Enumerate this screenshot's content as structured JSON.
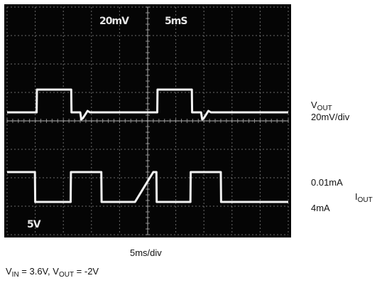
{
  "chart_data": {
    "type": "line",
    "title": "",
    "screen_labels": {
      "volts_div": "20mV",
      "time_div": "5mS",
      "ch_scale": "5V"
    },
    "xlabel": "5ms/div",
    "divisions": {
      "x": 10,
      "y": 8
    },
    "series": [
      {
        "name": "V_OUT",
        "scale_text": "20mV/div",
        "units": "div",
        "points": [
          [
            0,
            4.3
          ],
          [
            1.05,
            4.3
          ],
          [
            1.06,
            5.1
          ],
          [
            2.28,
            5.1
          ],
          [
            2.29,
            4.3
          ],
          [
            2.6,
            4.3
          ],
          [
            2.64,
            4.05
          ],
          [
            2.7,
            4.1
          ],
          [
            2.86,
            4.35
          ],
          [
            2.95,
            4.3
          ],
          [
            3.7,
            4.3
          ],
          [
            3.71,
            4.3
          ],
          [
            3.72,
            4.3
          ],
          [
            3.73,
            4.3
          ],
          [
            3.74,
            4.3
          ],
          [
            4.4,
            4.3
          ],
          [
            4.41,
            4.3
          ],
          [
            4.42,
            4.3
          ],
          [
            4.43,
            4.3
          ],
          [
            4.44,
            4.3
          ],
          [
            4.5,
            4.3
          ],
          [
            4.55,
            4.3
          ],
          [
            4.9,
            4.3
          ],
          [
            5.05,
            4.3
          ],
          [
            5.2,
            4.3
          ],
          [
            5.34,
            4.3
          ],
          [
            5.35,
            5.1
          ],
          [
            6.57,
            5.1
          ],
          [
            6.58,
            4.3
          ],
          [
            6.9,
            4.3
          ],
          [
            6.94,
            4.05
          ],
          [
            7.0,
            4.1
          ],
          [
            7.16,
            4.35
          ],
          [
            7.25,
            4.3
          ],
          [
            10,
            4.3
          ]
        ]
      },
      {
        "name": "I_OUT",
        "units": "div",
        "levels": [
          {
            "label": "0.01mA",
            "div": 2.2
          },
          {
            "label": "4mA",
            "div": 1.15
          }
        ],
        "points": [
          [
            0,
            2.2
          ],
          [
            0.99,
            2.2
          ],
          [
            1.0,
            1.15
          ],
          [
            2.26,
            1.15
          ],
          [
            2.27,
            2.2
          ],
          [
            3.35,
            2.2
          ],
          [
            3.36,
            1.15
          ],
          [
            4.55,
            1.15
          ],
          [
            5.2,
            2.2
          ],
          [
            5.2,
            2.2
          ],
          [
            5.31,
            2.2
          ],
          [
            5.32,
            1.15
          ],
          [
            6.52,
            1.15
          ],
          [
            6.53,
            2.2
          ],
          [
            7.6,
            2.2
          ],
          [
            7.61,
            1.15
          ],
          [
            10,
            1.15
          ]
        ]
      }
    ],
    "ylim": [
      0,
      8
    ],
    "xlim": [
      0,
      10
    ],
    "grid": true,
    "legend": "right"
  },
  "labels": {
    "vout_main": "V",
    "vout_sub": "OUT",
    "vout_scale": "20mV/div",
    "iout_high": "0.01mA",
    "iout_low": "4mA",
    "iout_main": "I",
    "iout_sub": "OUT",
    "time_div": "5ms/div",
    "cond_vin_main": "V",
    "cond_vin_sub": "IN",
    "cond_vin_value": " = 3.6V, ",
    "cond_vout_main": "V",
    "cond_vout_sub": "OUT",
    "cond_vout_value": " = -2V"
  },
  "colors": {
    "screen": "#050505",
    "trace": "#f2f2f2",
    "grid": "#bdbdbd",
    "text": "#111111"
  }
}
